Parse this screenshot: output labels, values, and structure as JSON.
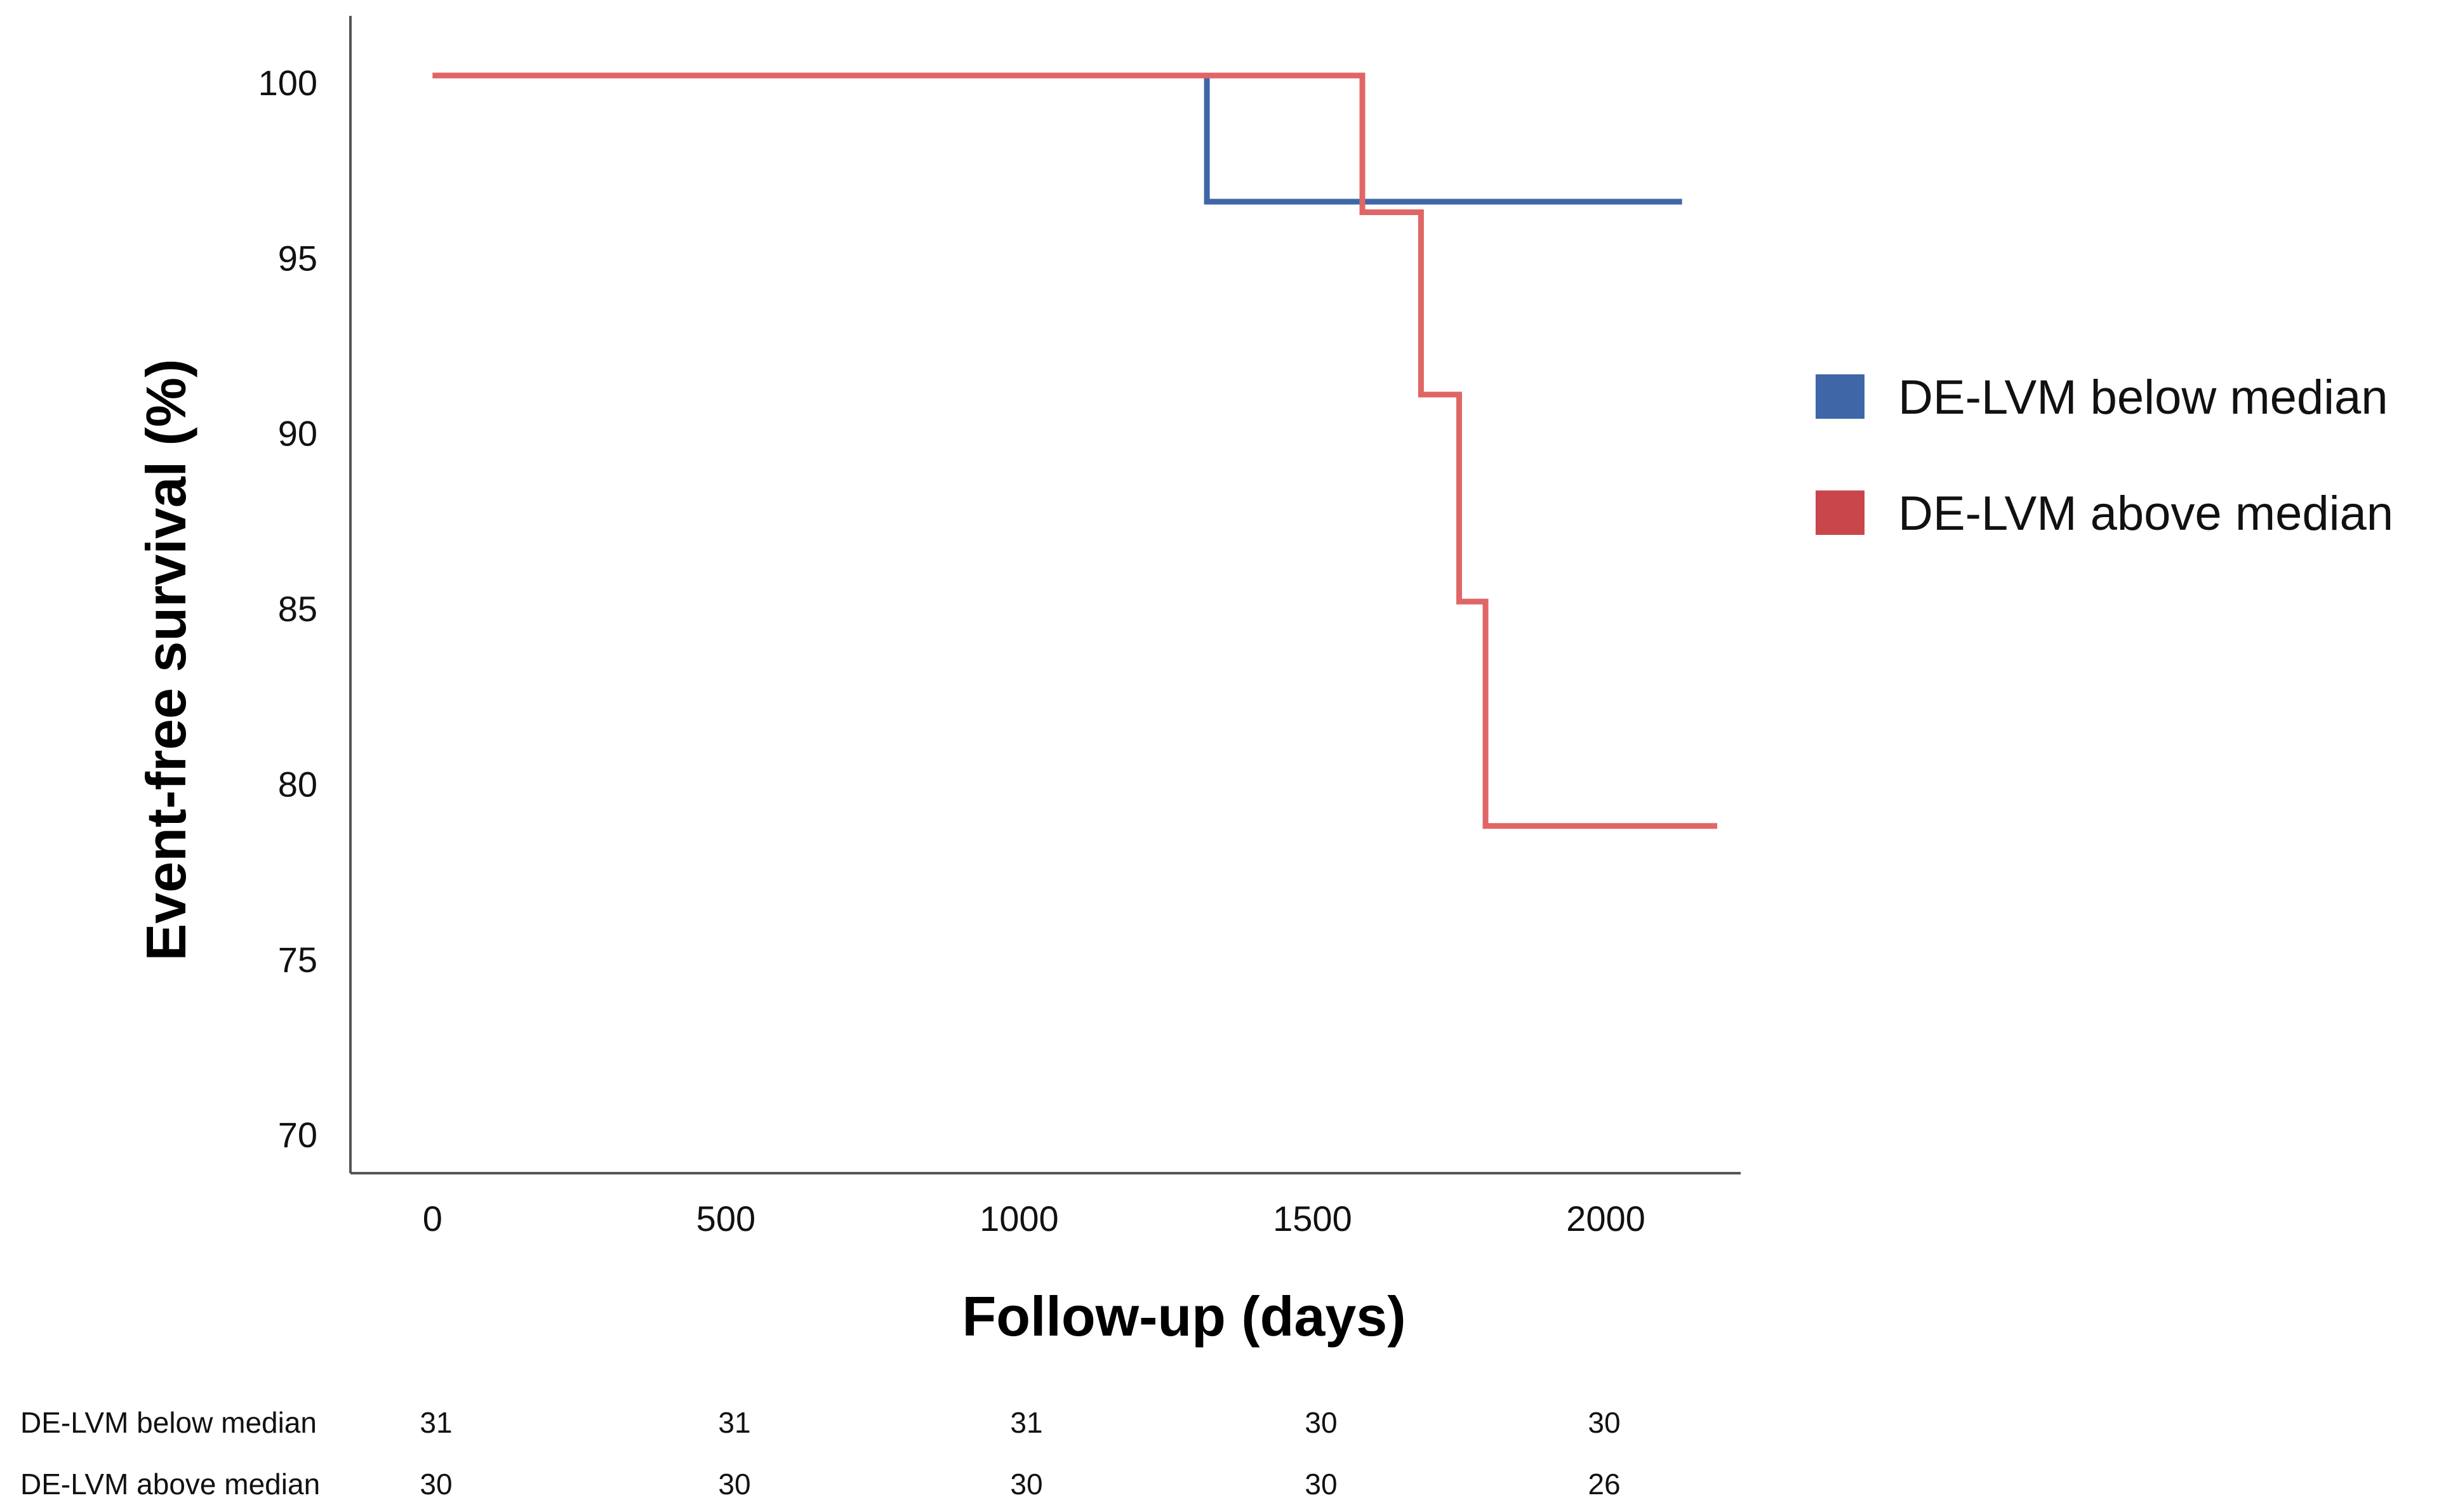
{
  "chart_data": {
    "type": "line",
    "subtype": "kaplan-meier step",
    "title": "",
    "xlabel": "Follow-up (days)",
    "ylabel": "Event-free survival (%)",
    "xlim": [
      -140,
      2230
    ],
    "ylim": [
      68.9,
      101.9
    ],
    "xticks": [
      0,
      500,
      1000,
      1500,
      2000
    ],
    "yticks": [
      70,
      75,
      80,
      85,
      90,
      95,
      100
    ],
    "grid": false,
    "legend_position": "right",
    "series": [
      {
        "name": "DE-LVM below median",
        "color": "#3f67a8",
        "x": [
          0,
          1320,
          1320,
          2130
        ],
        "y": [
          100.2,
          100.2,
          96.6,
          96.6
        ]
      },
      {
        "name": "DE-LVM above median",
        "color": "#e06666",
        "x": [
          0,
          1585,
          1585,
          1685,
          1685,
          1750,
          1750,
          1795,
          1795,
          2190
        ],
        "y": [
          100.2,
          100.2,
          96.3,
          96.3,
          91.1,
          91.1,
          85.2,
          85.2,
          78.8,
          78.8
        ]
      }
    ],
    "legend": [
      {
        "label": "DE-LVM below median",
        "color": "#3f67a8"
      },
      {
        "label": "DE-LVM above median",
        "color": "#c9474b"
      }
    ],
    "risk_table": {
      "rows": [
        {
          "label": "DE-LVM below median",
          "values": [
            "31",
            "31",
            "31",
            "30",
            "30"
          ]
        },
        {
          "label": "DE-LVM above median",
          "values": [
            "30",
            "30",
            "30",
            "30",
            "26"
          ]
        }
      ]
    }
  }
}
